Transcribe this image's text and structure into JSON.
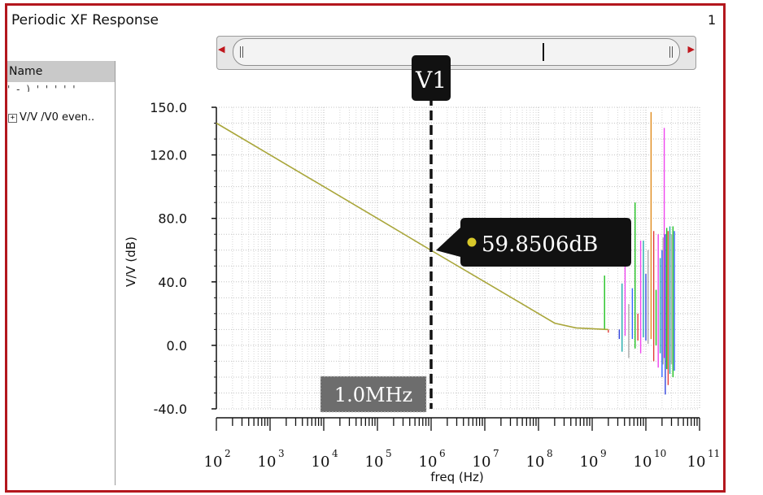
{
  "window": {
    "title": "Periodic XF Response",
    "page_number": "1"
  },
  "sidebar": {
    "header": "Name",
    "partial_item": "' - ) ' '  ' ' '",
    "tree_item": "V/V /V0 even..",
    "expand_symbol": "+"
  },
  "colors": {
    "frame": "#b3171d",
    "main_trace": "#a9a63a",
    "marker": "#111111"
  },
  "icons": {
    "scroll_left": "triangle-left-icon",
    "scroll_right": "triangle-right-icon",
    "expand": "plus-box-icon"
  },
  "chart_data": {
    "type": "line",
    "xlabel": "freq (Hz)",
    "ylabel": "V/V (dB)",
    "x_scale": "log",
    "xlim": [
      100,
      100000000000
    ],
    "ylim": [
      -40,
      150
    ],
    "grid": true,
    "y_ticks": [
      "150.0",
      "120.0",
      "80.0",
      "40.0",
      "0.0",
      "-40.0"
    ],
    "y_tick_values": [
      150,
      120,
      80,
      40,
      0,
      -40
    ],
    "x_ticks": [
      {
        "base": "10",
        "exp": "2",
        "value": 100
      },
      {
        "base": "10",
        "exp": "3",
        "value": 1000
      },
      {
        "base": "10",
        "exp": "4",
        "value": 10000
      },
      {
        "base": "10",
        "exp": "5",
        "value": 100000
      },
      {
        "base": "10",
        "exp": "6",
        "value": 1000000
      },
      {
        "base": "10",
        "exp": "7",
        "value": 10000000
      },
      {
        "base": "10",
        "exp": "8",
        "value": 100000000
      },
      {
        "base": "10",
        "exp": "9",
        "value": 1000000000
      },
      {
        "base": "10",
        "exp": "10",
        "value": 10000000000
      },
      {
        "base": "10",
        "exp": "11",
        "value": 100000000000
      }
    ],
    "series": [
      {
        "color": "#a9a63a",
        "x": [
          100,
          1000,
          10000,
          100000,
          1000000,
          10000000,
          100000000,
          200000000,
          500000000,
          1000000000,
          2000000000
        ],
        "y": [
          140,
          120,
          100,
          80,
          59.85,
          40,
          20,
          14,
          11,
          10.5,
          10
        ]
      }
    ],
    "harmonic_traces": [
      {
        "x": 1700000000,
        "y": [
          10,
          44
        ],
        "color": "#22c222"
      },
      {
        "x": 2000000000,
        "y": [
          10,
          8
        ],
        "color": "#e23a3a"
      },
      {
        "x": 3200000000,
        "y": [
          10,
          4
        ],
        "color": "#3344dd"
      },
      {
        "x": 3600000000,
        "y": [
          -4,
          39
        ],
        "color": "#22aaaa"
      },
      {
        "x": 4100000000,
        "y": [
          6,
          57
        ],
        "color": "#ee44ee"
      },
      {
        "x": 4800000000,
        "y": [
          -8,
          26
        ],
        "color": "#aaaaaa"
      },
      {
        "x": 5600000000,
        "y": [
          4,
          36
        ],
        "color": "#3366ff"
      },
      {
        "x": 6300000000,
        "y": [
          -2,
          90
        ],
        "color": "#22c222"
      },
      {
        "x": 7100000000,
        "y": [
          3,
          20
        ],
        "color": "#e23a3a"
      },
      {
        "x": 8000000000,
        "y": [
          -5,
          66
        ],
        "color": "#ee44ee"
      },
      {
        "x": 9000000000,
        "y": [
          5,
          66
        ],
        "color": "#22aaaa"
      },
      {
        "x": 10000000000,
        "y": [
          3,
          45
        ],
        "color": "#3344dd"
      },
      {
        "x": 11000000000,
        "y": [
          1,
          60
        ],
        "color": "#aaaaaa"
      },
      {
        "x": 12500000000,
        "y": [
          4,
          147
        ],
        "color": "#e08a1a"
      },
      {
        "x": 14000000000,
        "y": [
          -10,
          72
        ],
        "color": "#e23a3a"
      },
      {
        "x": 15500000000,
        "y": [
          0,
          35
        ],
        "color": "#22c222"
      },
      {
        "x": 17000000000,
        "y": [
          -14,
          70
        ],
        "color": "#ee44ee"
      },
      {
        "x": 18500000000,
        "y": [
          -5,
          55
        ],
        "color": "#22aaaa"
      },
      {
        "x": 20000000000,
        "y": [
          -20,
          60
        ],
        "color": "#3366ff"
      },
      {
        "x": 21000000000,
        "y": [
          -12,
          68
        ],
        "color": "#aaaaaa"
      },
      {
        "x": 22000000000,
        "y": [
          -8,
          137
        ],
        "color": "#ee44ee"
      },
      {
        "x": 23000000000,
        "y": [
          -31,
          70
        ],
        "color": "#3344dd"
      },
      {
        "x": 24500000000,
        "y": [
          -15,
          74
        ],
        "color": "#22c222"
      },
      {
        "x": 26000000000,
        "y": [
          -25,
          72
        ],
        "color": "#e23a3a"
      },
      {
        "x": 28000000000,
        "y": [
          -18,
          75
        ],
        "color": "#22aaaa"
      },
      {
        "x": 30000000000,
        "y": [
          -12,
          70
        ],
        "color": "#aaaaaa"
      },
      {
        "x": 32000000000,
        "y": [
          -20,
          75
        ],
        "color": "#22c222"
      },
      {
        "x": 34000000000,
        "y": [
          -16,
          72
        ],
        "color": "#3366ff"
      }
    ],
    "marker": {
      "name": "V1",
      "x": 1000000,
      "x_label": "1.0MHz",
      "point_y": 59.85,
      "value_label": "59.8506dB",
      "point_color": "#d8c82a"
    }
  }
}
